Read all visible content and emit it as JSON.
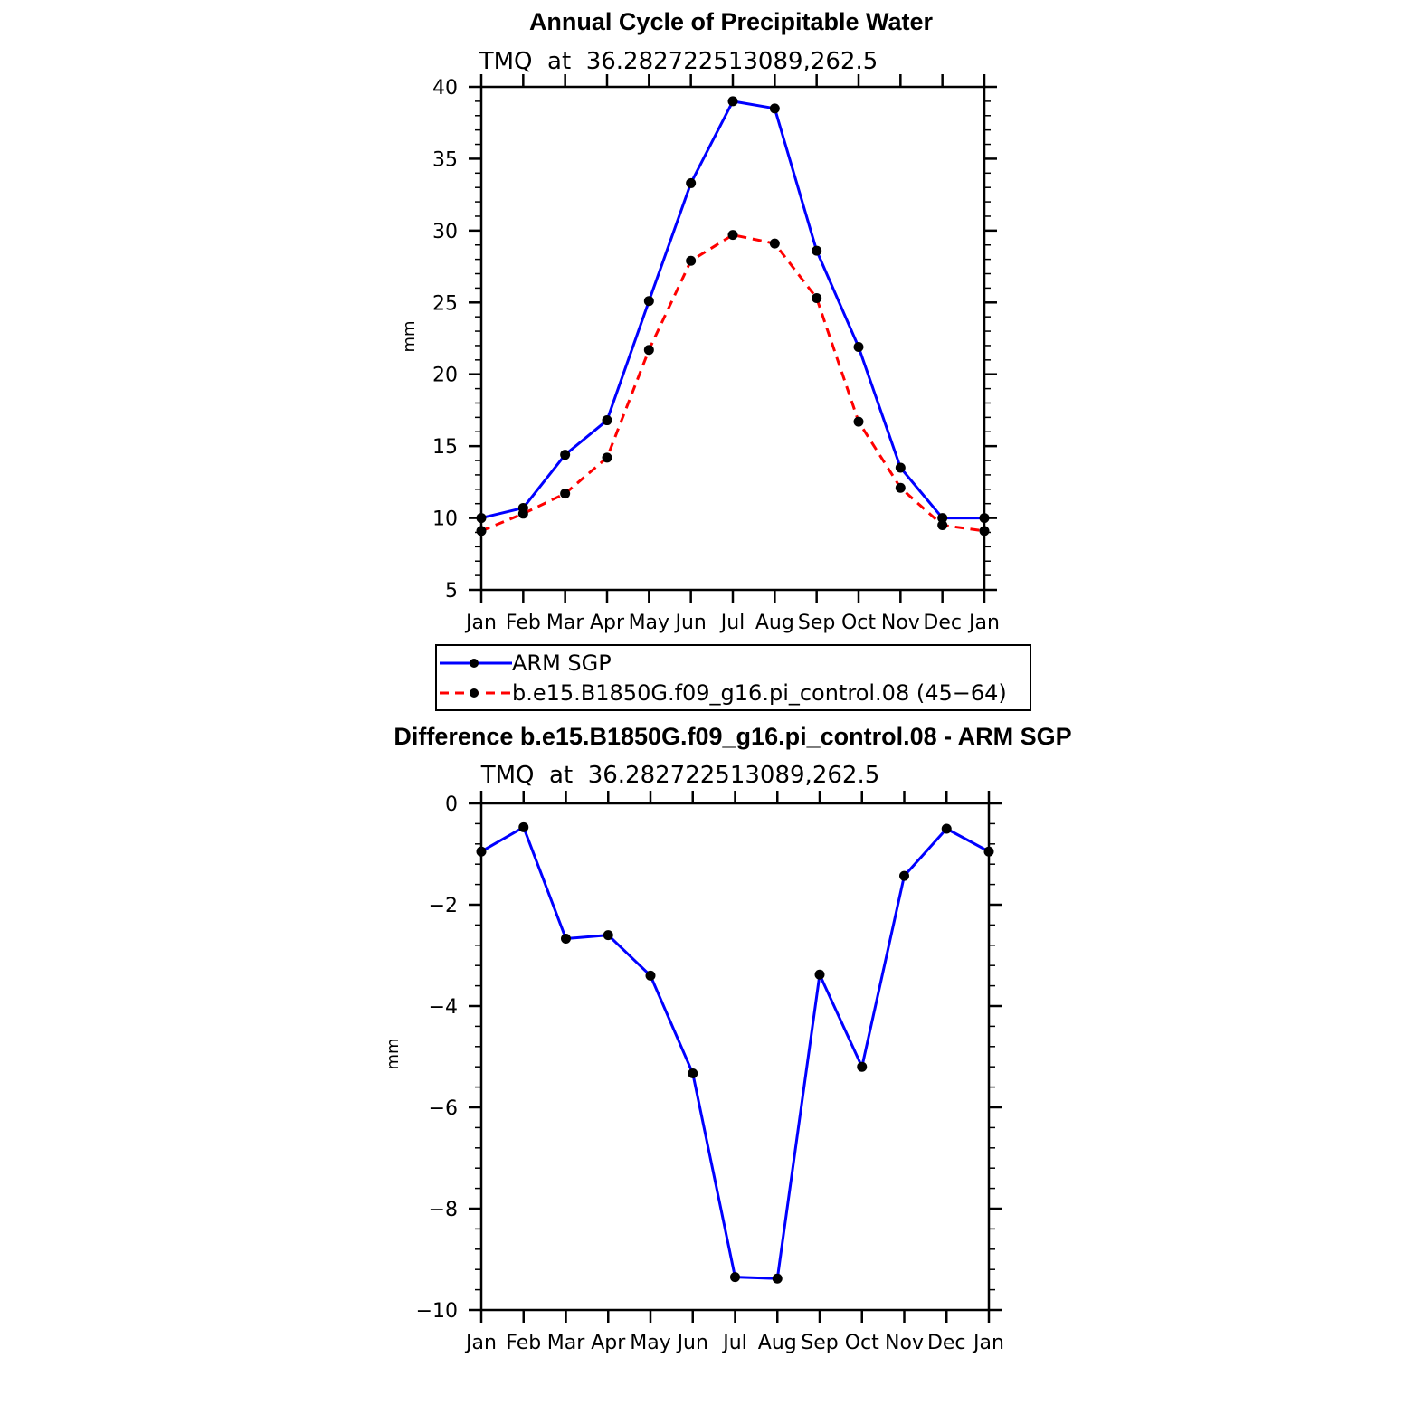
{
  "chart_data": [
    {
      "type": "line",
      "title": "Annual Cycle of Precipitable Water",
      "subtitle": "TMQ  at  36.282722513089,262.5",
      "xlabel": "",
      "ylabel": "mm",
      "categories": [
        "Jan",
        "Feb",
        "Mar",
        "Apr",
        "May",
        "Jun",
        "Jul",
        "Aug",
        "Sep",
        "Oct",
        "Nov",
        "Dec",
        "Jan"
      ],
      "ylim": [
        5,
        40
      ],
      "yticks": [
        "5",
        "10",
        "15",
        "20",
        "25",
        "30",
        "35",
        "40"
      ],
      "ytick_values": [
        5,
        10,
        15,
        20,
        25,
        30,
        35,
        40
      ],
      "series": [
        {
          "name": "ARM SGP",
          "color": "#0000ff",
          "dash": "solid",
          "values": [
            10.0,
            10.7,
            14.4,
            16.8,
            25.1,
            33.3,
            39.0,
            38.5,
            28.6,
            21.9,
            13.5,
            10.0,
            10.0
          ]
        },
        {
          "name": "b.e15.B1850G.f09_g16.pi_control.08 (45−64)",
          "color": "#ff0000",
          "dash": "dashed",
          "values": [
            9.1,
            10.3,
            11.7,
            14.2,
            21.7,
            27.9,
            29.7,
            29.1,
            25.3,
            16.7,
            12.1,
            9.5,
            9.1
          ]
        }
      ],
      "legend": "bottom"
    },
    {
      "type": "line",
      "title": "Difference b.e15.B1850G.f09_g16.pi_control.08 - ARM SGP",
      "subtitle": "TMQ  at  36.282722513089,262.5",
      "xlabel": "",
      "ylabel": "mm",
      "categories": [
        "Jan",
        "Feb",
        "Mar",
        "Apr",
        "May",
        "Jun",
        "Jul",
        "Aug",
        "Sep",
        "Oct",
        "Nov",
        "Dec",
        "Jan"
      ],
      "ylim": [
        -10,
        0
      ],
      "yticks": [
        "−10",
        "−8",
        "−6",
        "−4",
        "−2",
        "0"
      ],
      "ytick_values": [
        -10,
        -8,
        -6,
        -4,
        -2,
        0
      ],
      "series": [
        {
          "name": "Difference",
          "color": "#0000ff",
          "dash": "solid",
          "values": [
            -0.95,
            -0.47,
            -2.67,
            -2.6,
            -3.4,
            -5.33,
            -9.35,
            -9.38,
            -3.38,
            -5.2,
            -1.43,
            -0.5,
            -0.95
          ]
        }
      ]
    }
  ]
}
